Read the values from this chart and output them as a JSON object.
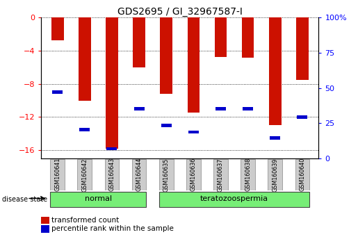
{
  "title": "GDS2695 / GI_32967587-I",
  "samples": [
    "GSM160641",
    "GSM160642",
    "GSM160643",
    "GSM160644",
    "GSM160635",
    "GSM160636",
    "GSM160637",
    "GSM160638",
    "GSM160639",
    "GSM160640"
  ],
  "red_values": [
    -2.8,
    -10.0,
    -15.8,
    -6.0,
    -9.2,
    -11.5,
    -4.8,
    -4.9,
    -13.0,
    -7.5
  ],
  "blue_values": [
    -9.0,
    -13.5,
    -15.8,
    -11.0,
    -13.0,
    -13.8,
    -11.0,
    -11.0,
    -14.5,
    -12.0
  ],
  "ylim_left": [
    -17,
    0
  ],
  "yticks_left": [
    0,
    -4,
    -8,
    -12,
    -16
  ],
  "yticks_right": [
    0,
    25,
    50,
    75,
    100
  ],
  "bar_color": "#CC1100",
  "blue_color": "#0000CC",
  "normal_label": "normal",
  "terato_label": "teratozoospermia",
  "disease_state_label": "disease state",
  "legend_red": "transformed count",
  "legend_blue": "percentile rank within the sample",
  "group_bg": "#77EE77",
  "xlabel_bg": "#CCCCCC",
  "title_fontsize": 10,
  "bar_width": 0.45
}
